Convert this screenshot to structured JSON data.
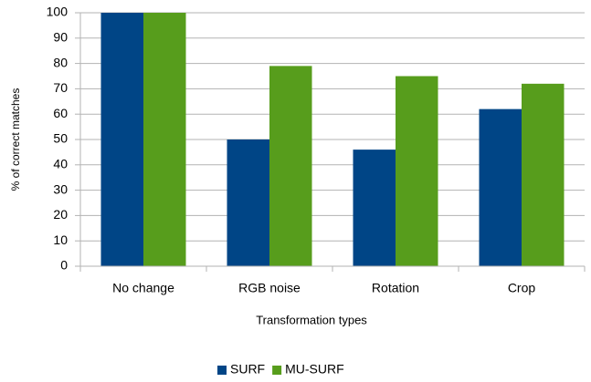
{
  "chart_data": {
    "type": "bar",
    "x_label": "Transformation types",
    "y_label": "% of correct matches",
    "categories": [
      "No change",
      "RGB noise",
      "Rotation",
      "Crop"
    ],
    "series": [
      {
        "name": "SURF",
        "color": "#004586",
        "values": [
          100,
          50,
          46,
          62
        ]
      },
      {
        "name": "MU-SURF",
        "color": "#579d1c",
        "values": [
          100,
          79,
          75,
          72
        ]
      }
    ],
    "ylim": [
      0,
      100
    ],
    "yticks": [
      0,
      10,
      20,
      30,
      40,
      50,
      60,
      70,
      80,
      90,
      100
    ],
    "grid": true,
    "legend": "bottom"
  }
}
